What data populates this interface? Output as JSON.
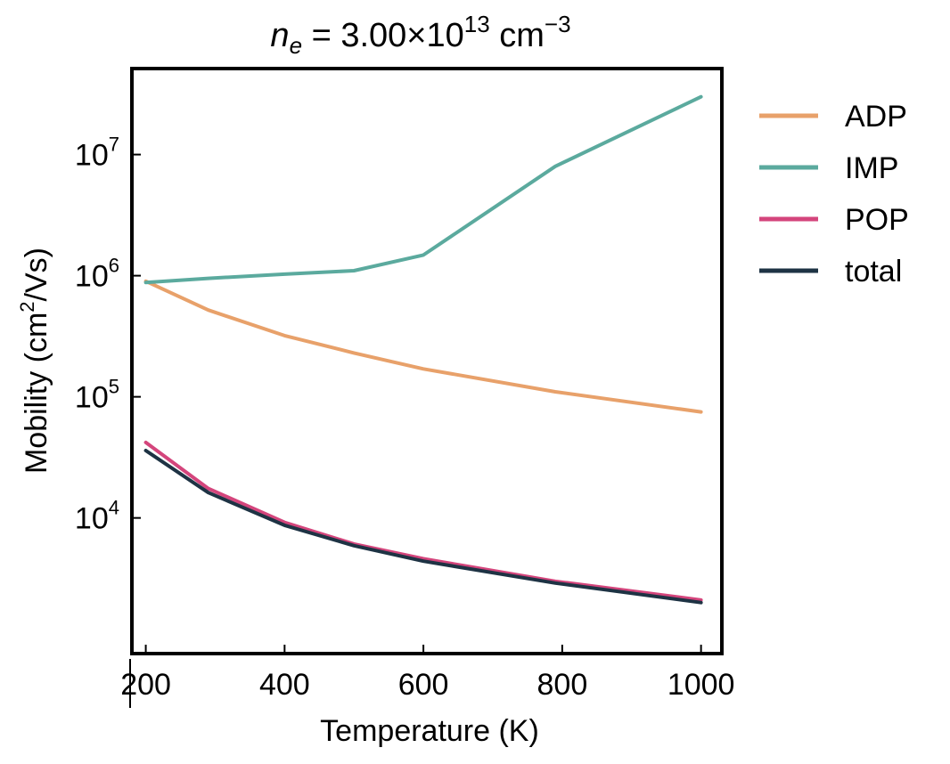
{
  "chart_data": {
    "type": "line",
    "title": {
      "symbol": "n",
      "subscript": "e",
      "equals": " = 3.00×10",
      "exponent": "13",
      "unit_base": " cm",
      "unit_exponent": "−3"
    },
    "xlabel": "Temperature (K)",
    "ylabel": {
      "before": "Mobility (cm",
      "sup": "2",
      "after": "/Vs)"
    },
    "xlim": [
      180,
      1030
    ],
    "ylim_log10": [
      2.88,
      7.71
    ],
    "yscale": "log",
    "x_ticks": [
      200,
      400,
      600,
      800,
      1000
    ],
    "x_tick_labels": [
      "200",
      "400",
      "600",
      "800",
      "1000"
    ],
    "y_ticks": [
      {
        "value": 10000,
        "base": "10",
        "exp": "4"
      },
      {
        "value": 100000,
        "base": "10",
        "exp": "5"
      },
      {
        "value": 1000000,
        "base": "10",
        "exp": "6"
      },
      {
        "value": 10000000,
        "base": "10",
        "exp": "7"
      }
    ],
    "legend_position": "outside-right",
    "x": [
      200,
      290,
      400,
      500,
      600,
      790,
      1000
    ],
    "series": [
      {
        "name": "ADP",
        "color": "#E8A16A",
        "values": [
          900000,
          520000,
          320000,
          230000,
          170000,
          110000,
          75000
        ]
      },
      {
        "name": "IMP",
        "color": "#5BAA9E",
        "values": [
          880000,
          950000,
          1030000,
          1100000,
          1480000,
          8000000,
          30000000
        ]
      },
      {
        "name": "POP",
        "color": "#D4457C",
        "values": [
          42000,
          17500,
          9200,
          6100,
          4600,
          3000,
          2100
        ]
      },
      {
        "name": "total",
        "color": "#1E3344",
        "values": [
          36000,
          16200,
          8700,
          5900,
          4400,
          2900,
          2000
        ]
      }
    ]
  }
}
